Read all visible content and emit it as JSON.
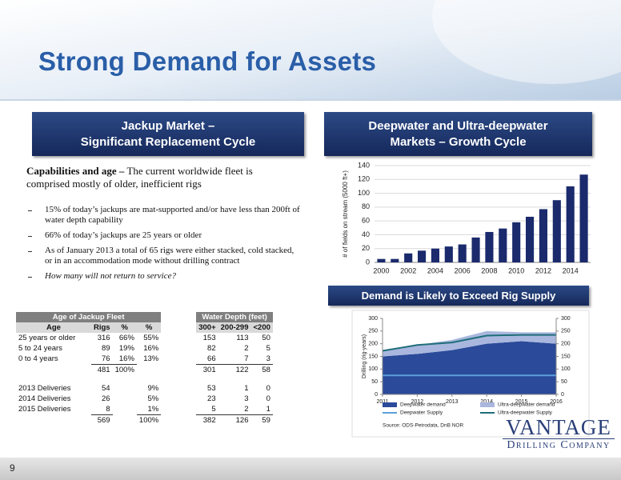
{
  "title": "Strong Demand for Assets",
  "page_number": "9",
  "left_panel": {
    "header": [
      "Jackup Market –",
      "Significant Replacement Cycle"
    ],
    "lead": "Capabilities and age –",
    "intro": "The current worldwide fleet is comprised mostly of older, inefficient rigs",
    "bullets": [
      "15% of today’s jackups are mat-supported and/or have less than 200ft of water depth capability",
      "66% of today’s jackups are 25 years or older",
      "As of January 2013 a total of 65 rigs were either stacked, cold stacked, or in an accommodation mode without drilling contract",
      "How many will not return to service?"
    ]
  },
  "right_panel": {
    "header": [
      "Deepwater and Ultra-deepwater",
      "Markets – Growth Cycle"
    ],
    "subheader": "Demand is Likely to Exceed Rig Supply",
    "source": "Source: ODS-Petrodata, DnB NOR"
  },
  "table": {
    "left_title": "Age of Jackup Fleet",
    "right_title": "Water Depth (feet)",
    "header": [
      "Age",
      "Rigs",
      "%",
      "%",
      "300+",
      "200-299",
      "<200"
    ],
    "rows": [
      [
        "25 years or older",
        "316",
        "66%",
        "55%",
        "153",
        "113",
        "50"
      ],
      [
        "5 to 24 years",
        "89",
        "19%",
        "16%",
        "82",
        "2",
        "5"
      ],
      [
        "0 to 4 years",
        "76",
        "16%",
        "13%",
        "66",
        "7",
        "3"
      ],
      [
        null,
        "481",
        "100%",
        null,
        "301",
        "122",
        "58"
      ],
      [
        "2013 Deliveries",
        "54",
        null,
        "9%",
        "53",
        "1",
        "0"
      ],
      [
        "2014 Deliveries",
        "26",
        null,
        "5%",
        "23",
        "3",
        "0"
      ],
      [
        "2015 Deliveries",
        "8",
        null,
        "1%",
        "5",
        "2",
        "1"
      ],
      [
        null,
        "569",
        null,
        "100%",
        "382",
        "126",
        "59"
      ]
    ]
  },
  "logo": {
    "name": "VANTAGE",
    "tagline": "Drilling Company"
  },
  "chart_data": [
    {
      "type": "bar",
      "y_label": "# of fields on stream (5000 ft+)",
      "categories": [
        "2000",
        null,
        "2002",
        null,
        "2004",
        null,
        "2006",
        null,
        "2008",
        null,
        "2010",
        null,
        "2012",
        null,
        "2014",
        null
      ],
      "values": [
        5,
        5,
        13,
        17,
        20,
        23,
        26,
        36,
        44,
        49,
        58,
        66,
        77,
        90,
        110,
        127
      ],
      "color": "#1a2a6c",
      "ylim": [
        0,
        140
      ],
      "yticks": [
        0,
        20,
        40,
        60,
        80,
        100,
        120,
        140
      ],
      "grid": true
    },
    {
      "type": "area",
      "y_label": "Drilling (rig-years)",
      "x": [
        2011,
        2012,
        2013,
        2014,
        2015,
        2016
      ],
      "xlim": [
        2011,
        2016
      ],
      "xticks": [
        2011,
        2012,
        2013,
        2014,
        2015,
        2016
      ],
      "ylim": [
        0,
        300
      ],
      "yticks": [
        0,
        50,
        100,
        150,
        200,
        250,
        300
      ],
      "y2lim": [
        0,
        300
      ],
      "y2ticks": [
        0,
        50,
        100,
        150,
        200,
        250,
        300
      ],
      "series": [
        {
          "name": "Deepwater demand",
          "kind": "area",
          "color": "#2b4a9a",
          "values": [
            150,
            160,
            175,
            200,
            210,
            200
          ]
        },
        {
          "name": "Ultra-deepwater demand",
          "kind": "stacked-area",
          "color": "#a9b7de",
          "values": [
            25,
            35,
            40,
            50,
            35,
            45
          ]
        },
        {
          "name": "Deepwater Supply",
          "kind": "line",
          "color": "#5aa0dc",
          "values": [
            75,
            75,
            75,
            75,
            75,
            75
          ]
        },
        {
          "name": "Ultra-deepwater Supply",
          "kind": "line",
          "color": "#1f6e7a",
          "values": [
            172,
            195,
            205,
            232,
            235,
            235
          ]
        }
      ]
    }
  ]
}
